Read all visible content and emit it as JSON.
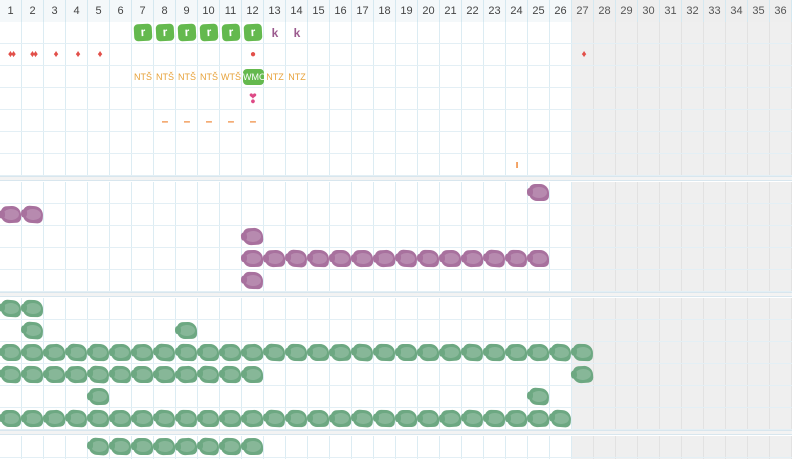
{
  "grid": {
    "day_numbers": [
      "1",
      "2",
      "3",
      "4",
      "5",
      "6",
      "7",
      "8",
      "9",
      "10",
      "11",
      "12",
      "13",
      "14",
      "15",
      "16",
      "17",
      "18",
      "19",
      "20",
      "21",
      "22",
      "23",
      "24",
      "25",
      "26",
      "27",
      "28",
      "29",
      "30",
      "31",
      "32",
      "33",
      "34",
      "35",
      "36"
    ],
    "inactive_from_day": 27
  },
  "colors": {
    "green_badge": "#64b94e",
    "red": "#e2504a",
    "orange_text": "#e7a23a",
    "orange_dash": "#ef8a3c",
    "purple_text": "#9b5a8e",
    "purple_scribble": "#a8719e",
    "green_scribble": "#6da882",
    "pink": "#de4a86"
  },
  "sections": {
    "top": {
      "rows": [
        {
          "marks": [
            {
              "day": 7,
              "kind": "badge",
              "text": "r"
            },
            {
              "day": 8,
              "kind": "badge",
              "text": "r"
            },
            {
              "day": 9,
              "kind": "badge",
              "text": "r"
            },
            {
              "day": 10,
              "kind": "badge",
              "text": "r"
            },
            {
              "day": 11,
              "kind": "badge",
              "text": "r"
            },
            {
              "day": 12,
              "kind": "badge",
              "text": "r"
            },
            {
              "day": 13,
              "kind": "letter",
              "text": "k"
            },
            {
              "day": 14,
              "kind": "letter",
              "text": "k"
            }
          ]
        },
        {
          "marks": [
            {
              "day": 1,
              "kind": "drops",
              "text": "♦♦"
            },
            {
              "day": 2,
              "kind": "drop",
              "text": "♦♦"
            },
            {
              "day": 3,
              "kind": "drop",
              "text": "♦"
            },
            {
              "day": 4,
              "kind": "drop",
              "text": "♦"
            },
            {
              "day": 5,
              "kind": "drop",
              "text": "♦"
            },
            {
              "day": 12,
              "kind": "dot",
              "text": "●"
            },
            {
              "day": 27,
              "kind": "drop",
              "text": "♦"
            }
          ]
        },
        {
          "marks": [
            {
              "day": 7,
              "kind": "code",
              "text": "NTŠ"
            },
            {
              "day": 8,
              "kind": "code",
              "text": "NTŠ"
            },
            {
              "day": 9,
              "kind": "code",
              "text": "NTŠ"
            },
            {
              "day": 10,
              "kind": "code",
              "text": "NTŠ"
            },
            {
              "day": 11,
              "kind": "code",
              "text": "WTŠ"
            },
            {
              "day": 12,
              "kind": "codebadge",
              "text": "WMO"
            },
            {
              "day": 13,
              "kind": "code",
              "text": "NTZ"
            },
            {
              "day": 14,
              "kind": "code",
              "text": "NTZ"
            }
          ]
        },
        {
          "marks": [
            {
              "day": 12,
              "kind": "heart",
              "text": "❣"
            }
          ]
        },
        {
          "marks": [
            {
              "day": 8,
              "kind": "dash",
              "text": "–"
            },
            {
              "day": 9,
              "kind": "dash",
              "text": "–"
            },
            {
              "day": 10,
              "kind": "dash",
              "text": "–"
            },
            {
              "day": 11,
              "kind": "dash",
              "text": "–"
            },
            {
              "day": 12,
              "kind": "dash",
              "text": "–"
            }
          ]
        },
        {
          "marks": []
        },
        {
          "marks": [
            {
              "day": 24,
              "kind": "tick",
              "text": "ı"
            }
          ]
        }
      ]
    },
    "purple": {
      "rows": [
        {
          "days": [
            25
          ]
        },
        {
          "days": [
            1,
            2
          ]
        },
        {
          "days": [
            12
          ]
        },
        {
          "days": [
            12,
            13,
            14,
            15,
            16,
            17,
            18,
            19,
            20,
            21,
            22,
            23,
            24,
            25
          ]
        },
        {
          "days": [
            12
          ]
        }
      ]
    },
    "green": {
      "rows": [
        {
          "days": [
            1,
            2
          ]
        },
        {
          "days": [
            2,
            9
          ]
        },
        {
          "days": [
            1,
            2,
            3,
            4,
            5,
            6,
            7,
            8,
            9,
            10,
            11,
            12,
            13,
            14,
            15,
            16,
            17,
            18,
            19,
            20,
            21,
            22,
            23,
            24,
            25,
            26,
            27
          ]
        },
        {
          "days": [
            1,
            2,
            3,
            4,
            5,
            6,
            7,
            8,
            9,
            10,
            11,
            12,
            27
          ]
        },
        {
          "days": [
            5,
            25
          ]
        },
        {
          "days": [
            1,
            2,
            3,
            4,
            5,
            6,
            7,
            8,
            9,
            10,
            11,
            12,
            13,
            14,
            15,
            16,
            17,
            18,
            19,
            20,
            21,
            22,
            23,
            24,
            25,
            26
          ]
        }
      ]
    },
    "bottom": {
      "rows": [
        {
          "days": [
            5,
            6,
            7,
            8,
            9,
            10,
            11,
            12
          ]
        }
      ]
    }
  }
}
